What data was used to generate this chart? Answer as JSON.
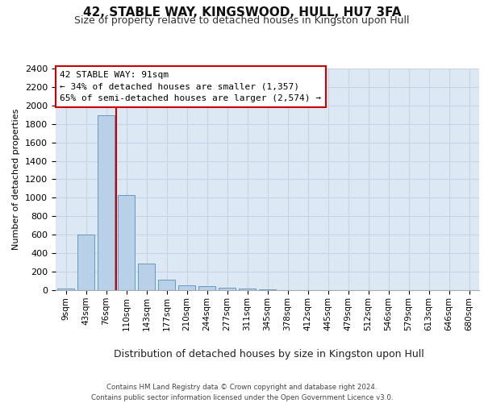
{
  "title1": "42, STABLE WAY, KINGSWOOD, HULL, HU7 3FA",
  "title2": "Size of property relative to detached houses in Kingston upon Hull",
  "xlabel": "Distribution of detached houses by size in Kingston upon Hull",
  "ylabel": "Number of detached properties",
  "categories": [
    "9sqm",
    "43sqm",
    "76sqm",
    "110sqm",
    "143sqm",
    "177sqm",
    "210sqm",
    "244sqm",
    "277sqm",
    "311sqm",
    "345sqm",
    "378sqm",
    "412sqm",
    "445sqm",
    "479sqm",
    "512sqm",
    "546sqm",
    "579sqm",
    "613sqm",
    "646sqm",
    "680sqm"
  ],
  "values": [
    20,
    600,
    1890,
    1030,
    290,
    115,
    50,
    40,
    28,
    15,
    5,
    2,
    1,
    0,
    0,
    0,
    0,
    0,
    0,
    0,
    0
  ],
  "bar_color": "#b8d0e8",
  "bar_edge_color": "#6898c0",
  "vline_color": "#cc0000",
  "annotation_box_text": "42 STABLE WAY: 91sqm\n← 34% of detached houses are smaller (1,357)\n65% of semi-detached houses are larger (2,574) →",
  "annotation_box_color": "#cc0000",
  "ylim": [
    0,
    2400
  ],
  "yticks": [
    0,
    200,
    400,
    600,
    800,
    1000,
    1200,
    1400,
    1600,
    1800,
    2000,
    2200,
    2400
  ],
  "footer1": "Contains HM Land Registry data © Crown copyright and database right 2024.",
  "footer2": "Contains public sector information licensed under the Open Government Licence v3.0.",
  "grid_color": "#c8d4e4",
  "bg_color": "#dce8f4",
  "title1_fontsize": 11,
  "title2_fontsize": 9,
  "ylabel_fontsize": 8,
  "xlabel_fontsize": 9
}
